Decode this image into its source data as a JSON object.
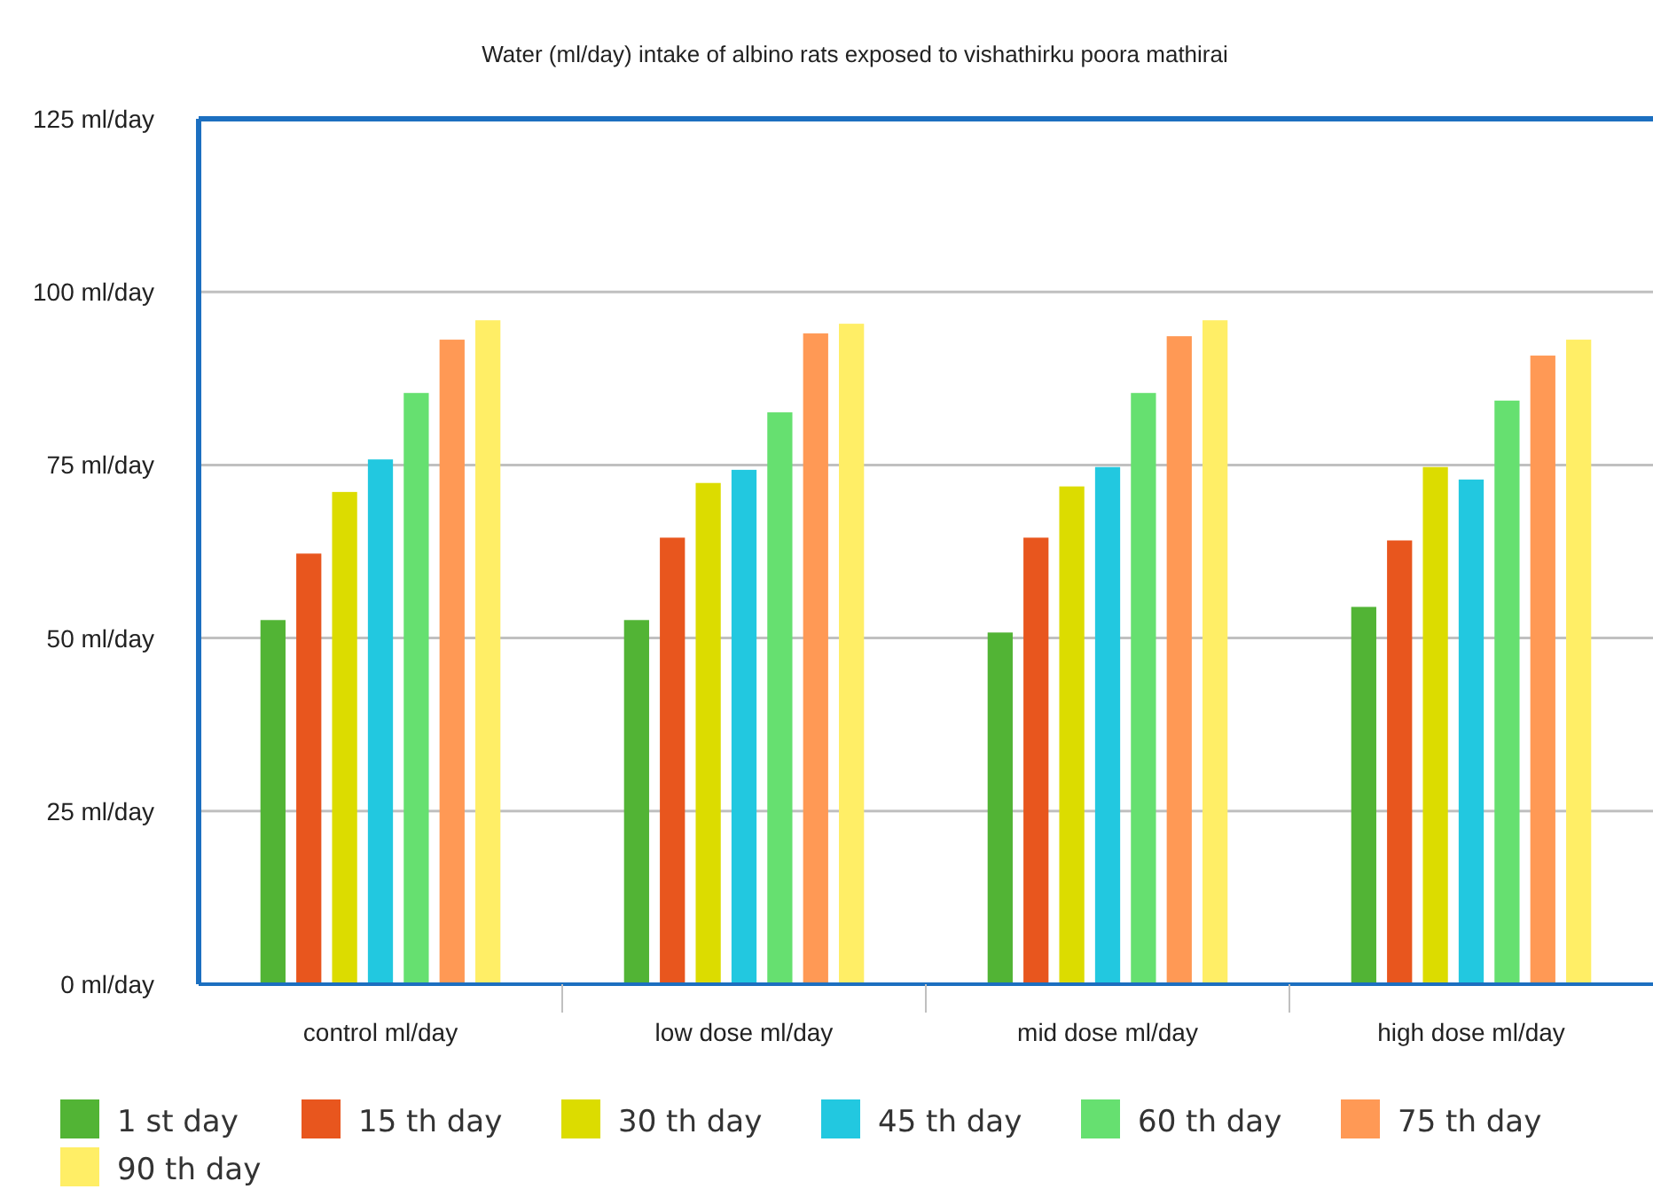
{
  "chart_data": {
    "type": "bar",
    "title": "Water (ml/day) intake of albino rats exposed to vishathirku poora mathirai",
    "categories": [
      "control ml/day",
      "low dose ml/day",
      "mid dose ml/day",
      "high dose ml/day"
    ],
    "series": [
      {
        "name": "1 st day",
        "color": "#52b435",
        "values": [
          52.6,
          52.6,
          50.8,
          54.5
        ]
      },
      {
        "name": "15 th day",
        "color": "#e8561e",
        "values": [
          62.2,
          64.5,
          64.5,
          64.1
        ]
      },
      {
        "name": "30 th day",
        "color": "#dcdc00",
        "values": [
          71.1,
          72.4,
          71.9,
          74.7
        ]
      },
      {
        "name": "45 th day",
        "color": "#22c8e0",
        "values": [
          75.8,
          74.3,
          74.7,
          72.9
        ]
      },
      {
        "name": "60 th day",
        "color": "#66e070",
        "values": [
          85.4,
          82.6,
          85.4,
          84.3
        ]
      },
      {
        "name": "75 th day",
        "color": "#ff9955",
        "values": [
          93.1,
          94.0,
          93.6,
          90.8
        ]
      },
      {
        "name": "90 th day",
        "color": "#ffee66",
        "values": [
          95.9,
          95.4,
          95.9,
          93.1
        ]
      }
    ],
    "ylim": [
      0,
      125
    ],
    "yticks": [
      {
        "value": 0,
        "label": "0 ml/day"
      },
      {
        "value": 25,
        "label": "25 ml/day"
      },
      {
        "value": 50,
        "label": "50 ml/day"
      },
      {
        "value": 75,
        "label": "75 ml/day"
      },
      {
        "value": 100,
        "label": "100 ml/day"
      },
      {
        "value": 125,
        "label": "125 ml/day"
      }
    ],
    "grid": "y",
    "legend": "bottom"
  }
}
